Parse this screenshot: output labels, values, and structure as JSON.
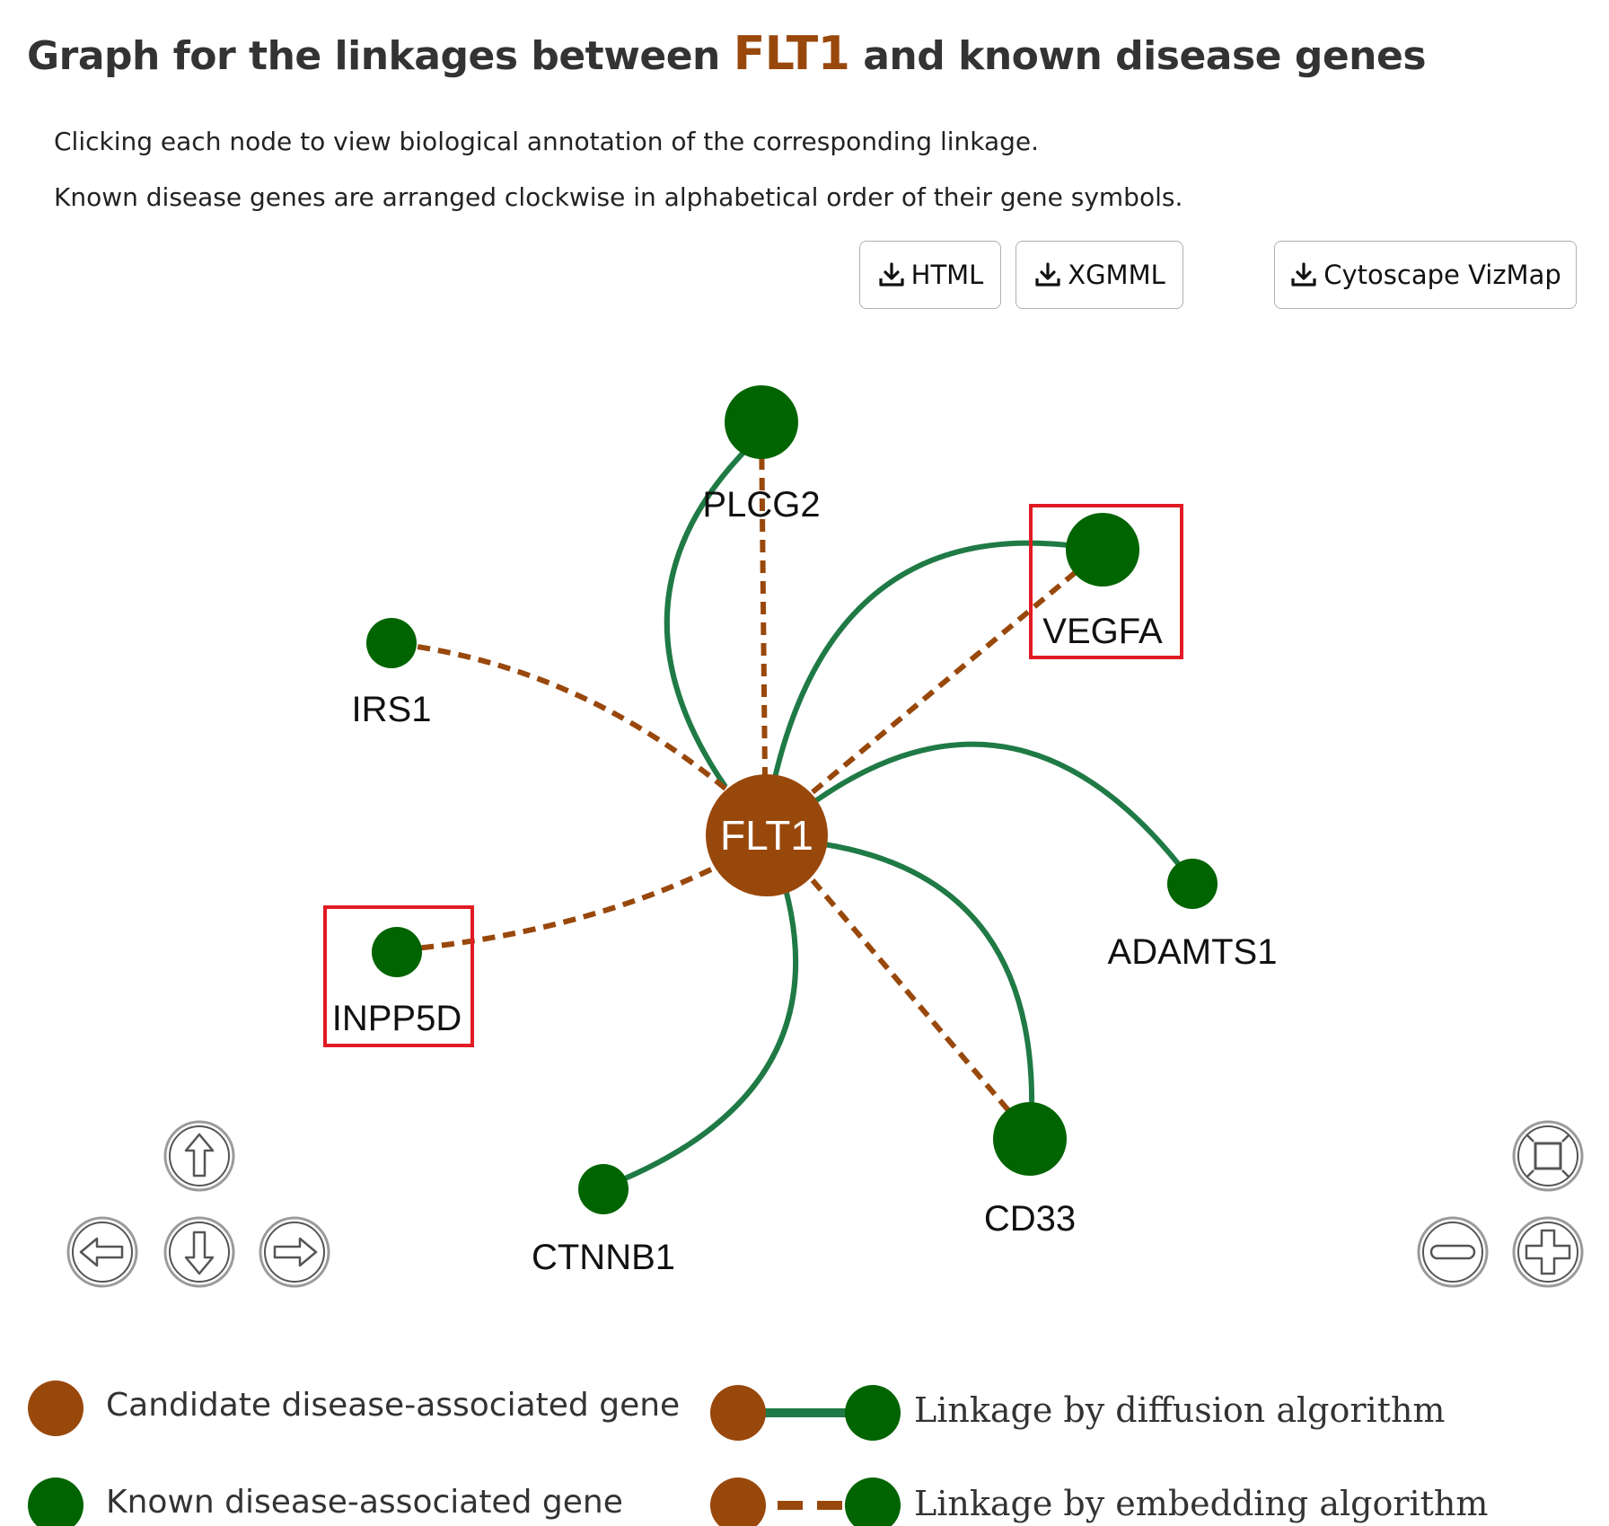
{
  "header": {
    "title_prefix": "Graph for the linkages between",
    "gene": "FLT1",
    "title_suffix": "and known disease genes",
    "desc1": "Clicking each node to view biological annotation of the corresponding linkage.",
    "desc2": "Known disease genes are arranged clockwise in alphabetical order of their gene symbols."
  },
  "toolbar": {
    "html_label": "HTML",
    "xgmml_label": "XGMML",
    "vizmap_label": "Cytoscape VizMap"
  },
  "graph": {
    "center": {
      "label": "FLT1",
      "color": "#99480c"
    },
    "nodes": [
      {
        "label": "PLCG2",
        "diffusion": true,
        "embedding": true,
        "highlighted": false
      },
      {
        "label": "VEGFA",
        "diffusion": true,
        "embedding": true,
        "highlighted": true
      },
      {
        "label": "ADAMTS1",
        "diffusion": true,
        "embedding": false,
        "highlighted": false
      },
      {
        "label": "CD33",
        "diffusion": true,
        "embedding": true,
        "highlighted": false
      },
      {
        "label": "CTNNB1",
        "diffusion": true,
        "embedding": false,
        "highlighted": false
      },
      {
        "label": "INPP5D",
        "diffusion": false,
        "embedding": true,
        "highlighted": true
      },
      {
        "label": "IRS1",
        "diffusion": false,
        "embedding": true,
        "highlighted": false
      }
    ],
    "colors": {
      "known_gene": "#006400",
      "candidate_gene": "#99480c",
      "diffusion_edge": "#1f7a45",
      "embedding_edge": "#99480c",
      "highlight_box": "#e01b24"
    }
  },
  "controls": {
    "pan_up_icon": "arrow-up-icon",
    "pan_down_icon": "arrow-down-icon",
    "pan_left_icon": "arrow-left-icon",
    "pan_right_icon": "arrow-right-icon",
    "fit_icon": "fit-screen-icon",
    "zoom_out_icon": "minus-icon",
    "zoom_in_icon": "plus-icon"
  },
  "legend": {
    "candidate": "Candidate disease-associated gene",
    "known": "Known disease-associated gene",
    "diffusion": "Linkage by diffusion algorithm",
    "embedding": "Linkage by embedding algorithm"
  }
}
